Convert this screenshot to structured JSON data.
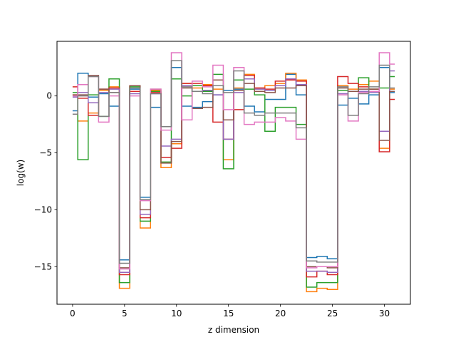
{
  "chart_data": {
    "type": "line",
    "drawstyle": "steps-mid",
    "title": "",
    "xlabel": "z dimension",
    "ylabel": "log(w)",
    "xlim": [
      -1.5,
      32.5
    ],
    "ylim": [
      -18.3,
      4.8
    ],
    "xticks": [
      0,
      5,
      10,
      15,
      20,
      25,
      30
    ],
    "yticks": [
      -15,
      -10,
      -5,
      0
    ],
    "ytick_labels": [
      "−15",
      "−10",
      "−5",
      "0"
    ],
    "grid": false,
    "legend": false,
    "x": [
      0,
      1,
      2,
      3,
      4,
      5,
      6,
      7,
      8,
      9,
      10,
      11,
      12,
      13,
      14,
      15,
      16,
      17,
      18,
      19,
      20,
      21,
      22,
      23,
      24,
      25,
      26,
      27,
      28,
      29,
      30,
      31
    ],
    "series": [
      {
        "color": "#1f77b4",
        "values": [
          -1.3,
          2.0,
          -0.1,
          0.2,
          -0.9,
          -14.4,
          0.6,
          -8.9,
          -1.0,
          -2.7,
          2.5,
          -0.9,
          -1.0,
          -0.5,
          0.1,
          0.5,
          0.6,
          -0.9,
          -1.4,
          -0.3,
          -0.3,
          1.9,
          0.1,
          -14.2,
          -14.1,
          -14.3,
          -0.8,
          -0.2,
          -0.7,
          0.1,
          2.5,
          0.3
        ]
      },
      {
        "color": "#ff7f0e",
        "values": [
          0.1,
          -2.2,
          -1.5,
          0.5,
          0.8,
          -16.9,
          0.9,
          -11.6,
          0.5,
          -6.3,
          -4.2,
          1.1,
          0.7,
          1.0,
          0.6,
          -5.6,
          0.7,
          1.9,
          0.7,
          0.9,
          1.1,
          2.0,
          1.4,
          -17.2,
          -16.9,
          -17.0,
          0.9,
          0.6,
          1.0,
          1.3,
          -4.6,
          0.6
        ]
      },
      {
        "color": "#2ca02c",
        "values": [
          0.3,
          -5.6,
          0.1,
          -1.8,
          1.5,
          -16.4,
          0.8,
          -11.0,
          0.4,
          -5.8,
          1.5,
          0.0,
          0.9,
          0.4,
          1.9,
          -6.4,
          1.4,
          0.6,
          0.1,
          -3.1,
          -1.0,
          -1.0,
          -2.5,
          -16.8,
          -16.4,
          -16.4,
          0.5,
          0.4,
          1.6,
          0.6,
          0.7,
          1.7
        ]
      },
      {
        "color": "#d62728",
        "values": [
          0.8,
          -0.2,
          -1.7,
          0.6,
          0.7,
          -15.7,
          0.4,
          -10.7,
          0.3,
          -5.4,
          -4.6,
          1.1,
          1.1,
          0.9,
          -2.3,
          -3.8,
          -1.2,
          1.8,
          0.7,
          0.6,
          1.3,
          1.4,
          1.3,
          -15.9,
          -15.4,
          -15.7,
          1.7,
          1.1,
          0.8,
          0.6,
          -4.9,
          -0.3
        ]
      },
      {
        "color": "#9467bd",
        "values": [
          -0.1,
          0.3,
          -0.6,
          0.3,
          0.6,
          -15.5,
          0.2,
          -10.4,
          0.2,
          -4.4,
          -3.8,
          0.9,
          0.4,
          0.5,
          0.1,
          -3.8,
          0.3,
          1.5,
          0.6,
          0.5,
          0.9,
          1.5,
          1.0,
          -15.4,
          -15.4,
          -15.5,
          0.2,
          0.4,
          0.4,
          0.3,
          -3.1,
          2.2
        ]
      },
      {
        "color": "#8c564b",
        "values": [
          0.1,
          0.1,
          1.8,
          0.6,
          0.3,
          -15.1,
          0.9,
          -10.0,
          0.6,
          -5.9,
          -4.0,
          0.7,
          -1.1,
          -1.0,
          1.4,
          -2.1,
          0.5,
          1.1,
          0.4,
          0.3,
          0.7,
          0.7,
          0.9,
          -15.0,
          -15.0,
          -15.1,
          0.7,
          0.4,
          0.6,
          0.6,
          -3.9,
          0.4
        ]
      },
      {
        "color": "#e377c2",
        "values": [
          0.0,
          1.0,
          1.7,
          -2.3,
          0.0,
          -15.2,
          0.0,
          -9.2,
          0.6,
          -3.0,
          3.8,
          -2.1,
          1.3,
          0.8,
          2.7,
          -1.2,
          2.5,
          -2.5,
          -2.3,
          -2.3,
          -1.9,
          -2.2,
          -3.8,
          -15.1,
          -15.0,
          -15.0,
          0.1,
          -2.2,
          0.3,
          0.4,
          3.8,
          2.8
        ]
      },
      {
        "color": "#7f7f7f",
        "values": [
          -1.6,
          0.0,
          1.7,
          -1.8,
          0.3,
          -14.7,
          0.7,
          -9.1,
          0.2,
          -2.7,
          3.1,
          0.8,
          0.4,
          0.2,
          0.9,
          0.3,
          2.2,
          -1.5,
          -1.7,
          -1.5,
          -1.5,
          -1.5,
          -2.8,
          -14.5,
          -14.6,
          -14.6,
          0.8,
          -1.7,
          0.2,
          0.8,
          2.7,
          0.7
        ]
      }
    ]
  }
}
